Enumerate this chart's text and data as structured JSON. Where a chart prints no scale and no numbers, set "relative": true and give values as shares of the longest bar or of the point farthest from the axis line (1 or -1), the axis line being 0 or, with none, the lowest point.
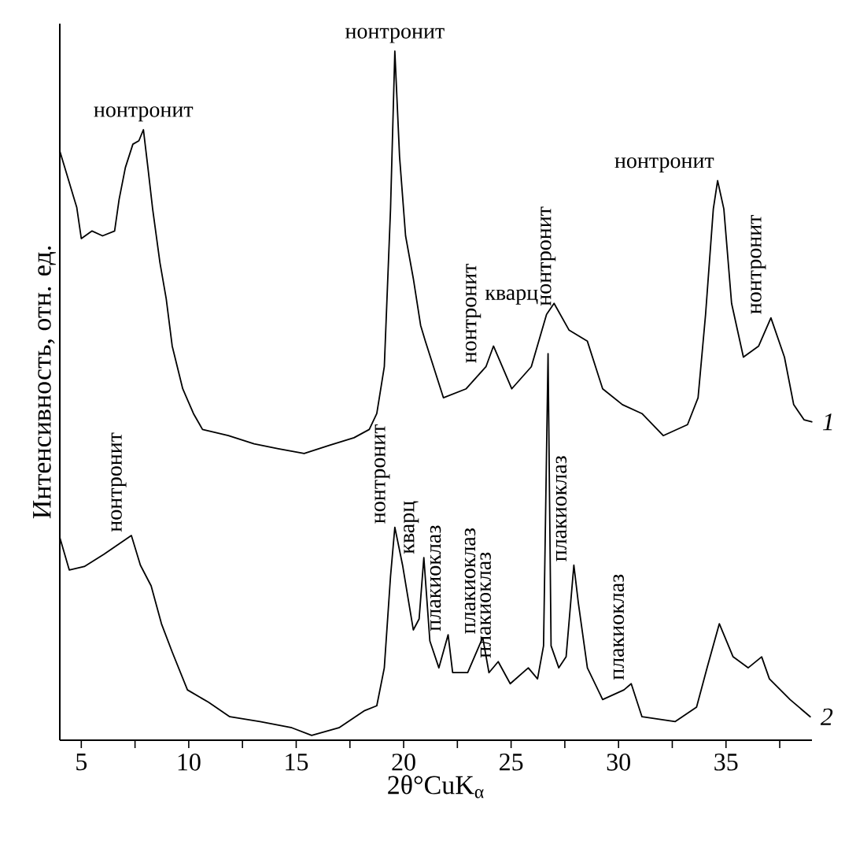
{
  "chart_data": {
    "type": "line",
    "relative": true,
    "xlabel": "2θ°CuK$_{α}$",
    "ylabel": "Интенсивность, отн. ед.",
    "xlim": [
      4,
      39
    ],
    "xticks": [
      5,
      {
        "value": 7.5,
        "label": null
      },
      10,
      {
        "value": 12.5,
        "label": null
      },
      15,
      {
        "value": 17.5,
        "label": null
      },
      20,
      {
        "value": 22.5,
        "label": null
      },
      25,
      {
        "value": 27.5,
        "label": null
      },
      30,
      {
        "value": 32.5,
        "label": null
      },
      35,
      {
        "value": 37.5,
        "label": null
      }
    ],
    "grid": false,
    "legend": false,
    "marker": "none",
    "line_style": "solid",
    "series": [
      {
        "name": "1",
        "color": "#000000",
        "x": [
          4.01,
          4.3,
          4.79,
          5.0,
          5.5,
          5.99,
          6.55,
          6.76,
          7.05,
          7.4,
          7.68,
          7.89,
          8.1,
          8.32,
          8.66,
          8.95,
          9.23,
          9.72,
          10.22,
          10.64,
          11.84,
          13.04,
          14.17,
          15.37,
          16.56,
          17.69,
          18.4,
          18.75,
          19.1,
          19.39,
          19.59,
          19.81,
          20.09,
          20.45,
          20.79,
          21.01,
          21.85,
          22.91,
          23.83,
          24.18,
          25.03,
          25.94,
          26.65,
          27.0,
          27.7,
          28.55,
          29.26,
          30.18,
          31.09,
          32.08,
          33.21,
          33.7,
          34.05,
          34.41,
          34.61,
          34.9,
          35.26,
          35.81,
          36.52,
          37.09,
          37.72,
          38.15,
          38.63,
          38.99
        ],
        "values": [
          0.854,
          0.824,
          0.773,
          0.728,
          0.739,
          0.732,
          0.739,
          0.785,
          0.831,
          0.865,
          0.87,
          0.886,
          0.831,
          0.771,
          0.693,
          0.641,
          0.572,
          0.51,
          0.474,
          0.451,
          0.442,
          0.43,
          0.423,
          0.416,
          0.428,
          0.439,
          0.451,
          0.474,
          0.542,
          0.771,
          1.0,
          0.847,
          0.732,
          0.67,
          0.602,
          0.579,
          0.497,
          0.51,
          0.542,
          0.572,
          0.51,
          0.542,
          0.618,
          0.634,
          0.595,
          0.579,
          0.51,
          0.487,
          0.474,
          0.442,
          0.458,
          0.497,
          0.618,
          0.771,
          0.812,
          0.771,
          0.634,
          0.556,
          0.572,
          0.613,
          0.556,
          0.487,
          0.465,
          0.462
        ]
      },
      {
        "name": "2",
        "color": "#000000",
        "x": [
          4.01,
          4.44,
          5.14,
          6.06,
          7.33,
          7.75,
          8.25,
          8.73,
          9.23,
          9.94,
          10.92,
          11.91,
          13.32,
          14.8,
          15.72,
          16.99,
          18.19,
          18.75,
          19.1,
          19.39,
          19.59,
          19.95,
          20.45,
          20.72,
          20.94,
          21.22,
          21.64,
          22.07,
          22.28,
          22.98,
          23.68,
          23.97,
          24.4,
          24.96,
          25.8,
          26.23,
          26.51,
          26.72,
          26.86,
          27.22,
          27.56,
          27.92,
          28.13,
          28.55,
          29.26,
          30.25,
          30.59,
          31.09,
          32.64,
          33.63,
          34.12,
          34.69,
          35.33,
          36.03,
          36.66,
          37.02,
          37.98,
          38.92
        ],
        "values": [
          0.293,
          0.247,
          0.252,
          0.27,
          0.297,
          0.254,
          0.224,
          0.169,
          0.128,
          0.073,
          0.055,
          0.034,
          0.027,
          0.018,
          0.007,
          0.018,
          0.043,
          0.05,
          0.105,
          0.238,
          0.309,
          0.254,
          0.16,
          0.176,
          0.265,
          0.144,
          0.105,
          0.153,
          0.098,
          0.098,
          0.149,
          0.098,
          0.114,
          0.082,
          0.105,
          0.089,
          0.137,
          0.561,
          0.137,
          0.105,
          0.121,
          0.254,
          0.199,
          0.105,
          0.059,
          0.073,
          0.082,
          0.034,
          0.027,
          0.048,
          0.105,
          0.169,
          0.121,
          0.105,
          0.121,
          0.089,
          0.059,
          0.034
        ]
      }
    ],
    "annotations": [
      {
        "text": "нонтронит",
        "x": 7.89,
        "y": 0.886
      },
      {
        "text": "нонтронит",
        "x": 19.59,
        "y": 1.0
      },
      {
        "text": "нонтронит",
        "x": 23.83,
        "y": 0.542
      },
      {
        "text": "нонтронит",
        "x": 26.65,
        "y": 0.618
      },
      {
        "text": "нонтронит",
        "x": 34.61,
        "y": 0.812
      },
      {
        "text": "нонтронит",
        "x": 37.09,
        "y": 0.613
      },
      {
        "text": "кварц",
        "x": 26.72,
        "y": 0.561
      },
      {
        "text": "нонтронит",
        "x": 7.33,
        "y": 0.297
      },
      {
        "text": "нонтронит",
        "x": 19.59,
        "y": 0.309
      },
      {
        "text": "кварц",
        "x": 20.94,
        "y": 0.265
      },
      {
        "text": "плакиоклаз",
        "x": 22.07,
        "y": 0.153
      },
      {
        "text": "плакиоклаз",
        "x": 23.68,
        "y": 0.149
      },
      {
        "text": "плакиоклаз",
        "x": 24.4,
        "y": 0.114
      },
      {
        "text": "плакиоклаз",
        "x": 27.92,
        "y": 0.254
      },
      {
        "text": "плакиоклаз",
        "x": 30.59,
        "y": 0.082
      }
    ]
  }
}
